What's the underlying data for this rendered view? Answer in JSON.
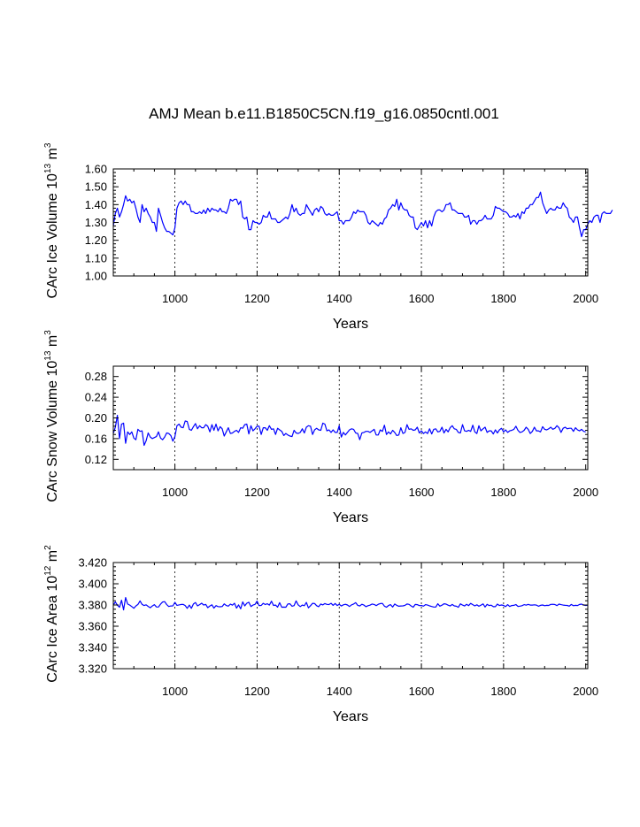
{
  "title": "AMJ Mean b.e11.B1850C5CN.f19_g16.0850cntl.001",
  "chart_data": [
    {
      "type": "line",
      "name": "ice-volume",
      "ylabel": {
        "prefix": "CArc Ice Volume 10",
        "exp": "13",
        "unit": " m",
        "unit_exp": "3"
      },
      "xlabel": "Years",
      "xlim": [
        850,
        2005
      ],
      "ylim": [
        1.0,
        1.6
      ],
      "xticks": [
        1000,
        1200,
        1400,
        1600,
        1800,
        2000
      ],
      "xtick_labels": [
        "1000",
        "1200",
        "1400",
        "1600",
        "1800",
        "2000"
      ],
      "yticks": [
        1.0,
        1.1,
        1.2,
        1.3,
        1.4,
        1.5,
        1.6
      ],
      "ytick_labels": [
        "1.00",
        "1.10",
        "1.20",
        "1.30",
        "1.40",
        "1.50",
        "1.60"
      ],
      "grid_x": [
        1000,
        1200,
        1400,
        1600,
        1800
      ],
      "color": "#0000ff",
      "x_start": 850,
      "x_step": 5,
      "values": [
        1.28,
        1.35,
        1.38,
        1.33,
        1.36,
        1.4,
        1.45,
        1.42,
        1.43,
        1.41,
        1.42,
        1.38,
        1.33,
        1.3,
        1.4,
        1.36,
        1.38,
        1.35,
        1.33,
        1.3,
        1.3,
        1.25,
        1.38,
        1.34,
        1.3,
        1.27,
        1.25,
        1.25,
        1.24,
        1.23,
        1.27,
        1.38,
        1.41,
        1.42,
        1.4,
        1.42,
        1.4,
        1.4,
        1.36,
        1.36,
        1.35,
        1.35,
        1.36,
        1.35,
        1.37,
        1.35,
        1.38,
        1.36,
        1.38,
        1.37,
        1.37,
        1.36,
        1.38,
        1.36,
        1.36,
        1.35,
        1.38,
        1.43,
        1.42,
        1.43,
        1.43,
        1.4,
        1.42,
        1.33,
        1.32,
        1.33,
        1.26,
        1.26,
        1.31,
        1.3,
        1.3,
        1.29,
        1.3,
        1.34,
        1.33,
        1.33,
        1.36,
        1.32,
        1.32,
        1.32,
        1.3,
        1.3,
        1.31,
        1.32,
        1.33,
        1.32,
        1.35,
        1.4,
        1.36,
        1.38,
        1.35,
        1.34,
        1.35,
        1.35,
        1.4,
        1.38,
        1.36,
        1.34,
        1.37,
        1.38,
        1.36,
        1.39,
        1.38,
        1.35,
        1.34,
        1.35,
        1.34,
        1.34,
        1.35,
        1.36,
        1.31,
        1.31,
        1.29,
        1.31,
        1.31,
        1.31,
        1.33,
        1.36,
        1.35,
        1.37,
        1.36,
        1.36,
        1.36,
        1.34,
        1.3,
        1.29,
        1.31,
        1.3,
        1.29,
        1.28,
        1.3,
        1.29,
        1.32,
        1.33,
        1.37,
        1.38,
        1.4,
        1.39,
        1.43,
        1.37,
        1.41,
        1.38,
        1.37,
        1.37,
        1.34,
        1.33,
        1.33,
        1.27,
        1.26,
        1.28,
        1.3,
        1.28,
        1.31,
        1.27,
        1.31,
        1.28,
        1.33,
        1.36,
        1.37,
        1.37,
        1.36,
        1.37,
        1.4,
        1.4,
        1.41,
        1.37,
        1.37,
        1.36,
        1.35,
        1.35,
        1.35,
        1.33,
        1.33,
        1.34,
        1.29,
        1.31,
        1.31,
        1.29,
        1.31,
        1.31,
        1.32,
        1.34,
        1.32,
        1.32,
        1.32,
        1.34,
        1.39,
        1.38,
        1.38,
        1.37,
        1.36,
        1.36,
        1.35,
        1.33,
        1.33,
        1.34,
        1.33,
        1.35,
        1.32,
        1.36,
        1.35,
        1.38,
        1.38,
        1.4,
        1.4,
        1.42,
        1.44,
        1.44,
        1.47,
        1.41,
        1.38,
        1.35,
        1.37,
        1.38,
        1.37,
        1.37,
        1.39,
        1.38,
        1.38,
        1.41,
        1.39,
        1.38,
        1.33,
        1.32,
        1.3,
        1.33,
        1.33,
        1.27,
        1.22,
        1.26,
        1.26,
        1.29,
        1.31,
        1.3,
        1.33,
        1.34,
        1.34,
        1.3,
        1.35,
        1.36,
        1.35,
        1.35,
        1.35,
        1.37
      ]
    },
    {
      "type": "line",
      "name": "snow-volume",
      "ylabel": {
        "prefix": "CArc Snow Volume 10",
        "exp": "13",
        "unit": " m",
        "unit_exp": "3"
      },
      "xlabel": "Years",
      "xlim": [
        850,
        2005
      ],
      "ylim": [
        0.1,
        0.3
      ],
      "xticks": [
        1000,
        1200,
        1400,
        1600,
        1800,
        2000
      ],
      "xtick_labels": [
        "1000",
        "1200",
        "1400",
        "1600",
        "1800",
        "2000"
      ],
      "yticks": [
        0.12,
        0.16,
        0.2,
        0.24,
        0.28
      ],
      "ytick_labels": [
        "0.12",
        "0.16",
        "0.20",
        "0.24",
        "0.28"
      ],
      "grid_x": [
        1000,
        1200,
        1400,
        1600,
        1800
      ],
      "color": "#0000ff",
      "x_start": 850,
      "x_step": 5,
      "values": [
        0.17,
        0.182,
        0.205,
        0.16,
        0.188,
        0.19,
        0.151,
        0.173,
        0.168,
        0.173,
        0.161,
        0.158,
        0.178,
        0.174,
        0.175,
        0.147,
        0.156,
        0.171,
        0.163,
        0.16,
        0.162,
        0.164,
        0.173,
        0.161,
        0.158,
        0.163,
        0.171,
        0.17,
        0.166,
        0.155,
        0.164,
        0.185,
        0.188,
        0.182,
        0.181,
        0.194,
        0.193,
        0.178,
        0.176,
        0.183,
        0.189,
        0.179,
        0.185,
        0.181,
        0.181,
        0.187,
        0.184,
        0.173,
        0.187,
        0.176,
        0.188,
        0.175,
        0.183,
        0.179,
        0.165,
        0.173,
        0.181,
        0.17,
        0.171,
        0.174,
        0.176,
        0.172,
        0.181,
        0.18,
        0.187,
        0.188,
        0.169,
        0.185,
        0.175,
        0.179,
        0.184,
        0.184,
        0.168,
        0.181,
        0.181,
        0.176,
        0.185,
        0.178,
        0.179,
        0.168,
        0.18,
        0.177,
        0.174,
        0.166,
        0.17,
        0.167,
        0.165,
        0.164,
        0.176,
        0.171,
        0.17,
        0.172,
        0.179,
        0.171,
        0.182,
        0.185,
        0.184,
        0.168,
        0.177,
        0.18,
        0.177,
        0.176,
        0.19,
        0.188,
        0.175,
        0.177,
        0.172,
        0.177,
        0.172,
        0.172,
        0.185,
        0.163,
        0.172,
        0.167,
        0.172,
        0.177,
        0.179,
        0.178,
        0.171,
        0.17,
        0.158,
        0.171,
        0.172,
        0.174,
        0.174,
        0.172,
        0.175,
        0.178,
        0.167,
        0.167,
        0.177,
        0.174,
        0.186,
        0.168,
        0.173,
        0.169,
        0.176,
        0.172,
        0.166,
        0.167,
        0.181,
        0.17,
        0.172,
        0.187,
        0.178,
        0.179,
        0.176,
        0.177,
        0.182,
        0.171,
        0.175,
        0.17,
        0.173,
        0.17,
        0.179,
        0.169,
        0.178,
        0.179,
        0.173,
        0.174,
        0.182,
        0.171,
        0.178,
        0.173,
        0.181,
        0.185,
        0.179,
        0.178,
        0.172,
        0.171,
        0.187,
        0.175,
        0.174,
        0.176,
        0.174,
        0.186,
        0.173,
        0.17,
        0.185,
        0.175,
        0.179,
        0.182,
        0.172,
        0.175,
        0.175,
        0.169,
        0.177,
        0.171,
        0.177,
        0.18,
        0.173,
        0.177,
        0.172,
        0.175,
        0.176,
        0.178,
        0.184,
        0.176,
        0.172,
        0.173,
        0.176,
        0.182,
        0.178,
        0.17,
        0.174,
        0.182,
        0.175,
        0.175,
        0.173,
        0.183,
        0.178,
        0.177,
        0.179,
        0.182,
        0.178,
        0.18,
        0.185,
        0.181,
        0.172,
        0.18,
        0.182,
        0.179,
        0.18,
        0.18,
        0.174,
        0.181,
        0.177,
        0.175,
        0.178,
        0.174,
        0.173
      ]
    },
    {
      "type": "line",
      "name": "ice-area",
      "ylabel": {
        "prefix": "CArc Ice Area 10",
        "exp": "12",
        "unit": " m",
        "unit_exp": "2"
      },
      "xlabel": "Years",
      "xlim": [
        850,
        2005
      ],
      "ylim": [
        3.32,
        3.42
      ],
      "xticks": [
        1000,
        1200,
        1400,
        1600,
        1800,
        2000
      ],
      "xtick_labels": [
        "1000",
        "1200",
        "1400",
        "1600",
        "1800",
        "2000"
      ],
      "yticks": [
        3.32,
        3.34,
        3.36,
        3.38,
        3.4,
        3.42
      ],
      "ytick_labels": [
        "3.320",
        "3.340",
        "3.360",
        "3.380",
        "3.400",
        "3.420"
      ],
      "grid_x": [
        1000,
        1200,
        1400,
        1600,
        1800
      ],
      "color": "#0000ff",
      "x_start": 850,
      "x_step": 5,
      "values": [
        3.38,
        3.3828,
        3.3798,
        3.3778,
        3.3845,
        3.3754,
        3.387,
        3.3809,
        3.3799,
        3.3785,
        3.3769,
        3.3791,
        3.3805,
        3.3838,
        3.3806,
        3.3795,
        3.3802,
        3.3787,
        3.3774,
        3.3791,
        3.3803,
        3.3782,
        3.3781,
        3.3808,
        3.3828,
        3.3832,
        3.3804,
        3.3786,
        3.3791,
        3.3792,
        3.3825,
        3.3797,
        3.3801,
        3.3805,
        3.3806,
        3.3795,
        3.3768,
        3.3799,
        3.3768,
        3.3809,
        3.3823,
        3.3792,
        3.3803,
        3.3817,
        3.3799,
        3.3806,
        3.3775,
        3.3791,
        3.3802,
        3.3771,
        3.3794,
        3.3785,
        3.3783,
        3.3786,
        3.3811,
        3.3795,
        3.3789,
        3.3808,
        3.3798,
        3.3817,
        3.3771,
        3.3801,
        3.3764,
        3.3829,
        3.3792,
        3.3817,
        3.3826,
        3.3786,
        3.3799,
        3.3806,
        3.3837,
        3.3794,
        3.3796,
        3.3816,
        3.3804,
        3.3812,
        3.3799,
        3.3836,
        3.3796,
        3.3799,
        3.378,
        3.3822,
        3.3779,
        3.378,
        3.3779,
        3.381,
        3.3812,
        3.3788,
        3.3794,
        3.3838,
        3.3802,
        3.3785,
        3.3799,
        3.3793,
        3.3824,
        3.3773,
        3.3793,
        3.3816,
        3.3814,
        3.3793,
        3.3784,
        3.3809,
        3.3801,
        3.3813,
        3.3806,
        3.3804,
        3.3816,
        3.3797,
        3.3814,
        3.3795,
        3.3807,
        3.3791,
        3.3802,
        3.3807,
        3.38,
        3.3786,
        3.3802,
        3.3809,
        3.3822,
        3.3797,
        3.3791,
        3.3807,
        3.3799,
        3.3784,
        3.3793,
        3.3798,
        3.3809,
        3.3805,
        3.3794,
        3.3807,
        3.3813,
        3.3815,
        3.3789,
        3.3779,
        3.3795,
        3.3803,
        3.3781,
        3.3809,
        3.3797,
        3.3788,
        3.3791,
        3.3792,
        3.3797,
        3.3809,
        3.3806,
        3.3791,
        3.3779,
        3.3805,
        3.3803,
        3.3794,
        3.3795,
        3.3789,
        3.3803,
        3.3799,
        3.3792,
        3.3786,
        3.3781,
        3.3781,
        3.3812,
        3.3789,
        3.3798,
        3.3812,
        3.3808,
        3.3798,
        3.3791,
        3.3805,
        3.3792,
        3.3788,
        3.3778,
        3.3811,
        3.3799,
        3.3791,
        3.3807,
        3.3794,
        3.3815,
        3.3803,
        3.3792,
        3.3802,
        3.3788,
        3.3798,
        3.3811,
        3.3781,
        3.3806,
        3.3795,
        3.3798,
        3.3784,
        3.3784,
        3.3808,
        3.3795,
        3.38,
        3.3796,
        3.3785,
        3.3803,
        3.3786,
        3.3795,
        3.3797,
        3.3804,
        3.3787,
        3.3789,
        3.3793,
        3.3803,
        3.3798,
        3.3806,
        3.3799,
        3.3799,
        3.3802,
        3.3799,
        3.3788,
        3.3797,
        3.38,
        3.3793,
        3.3797,
        3.3796,
        3.3806,
        3.3807,
        3.3804,
        3.3794,
        3.3808,
        3.3803,
        3.3799,
        3.3797,
        3.3796,
        3.3789,
        3.3805,
        3.3793,
        3.3797,
        3.3795,
        3.3805,
        3.3808,
        3.38,
        3.3796,
        3.3799
      ]
    }
  ]
}
